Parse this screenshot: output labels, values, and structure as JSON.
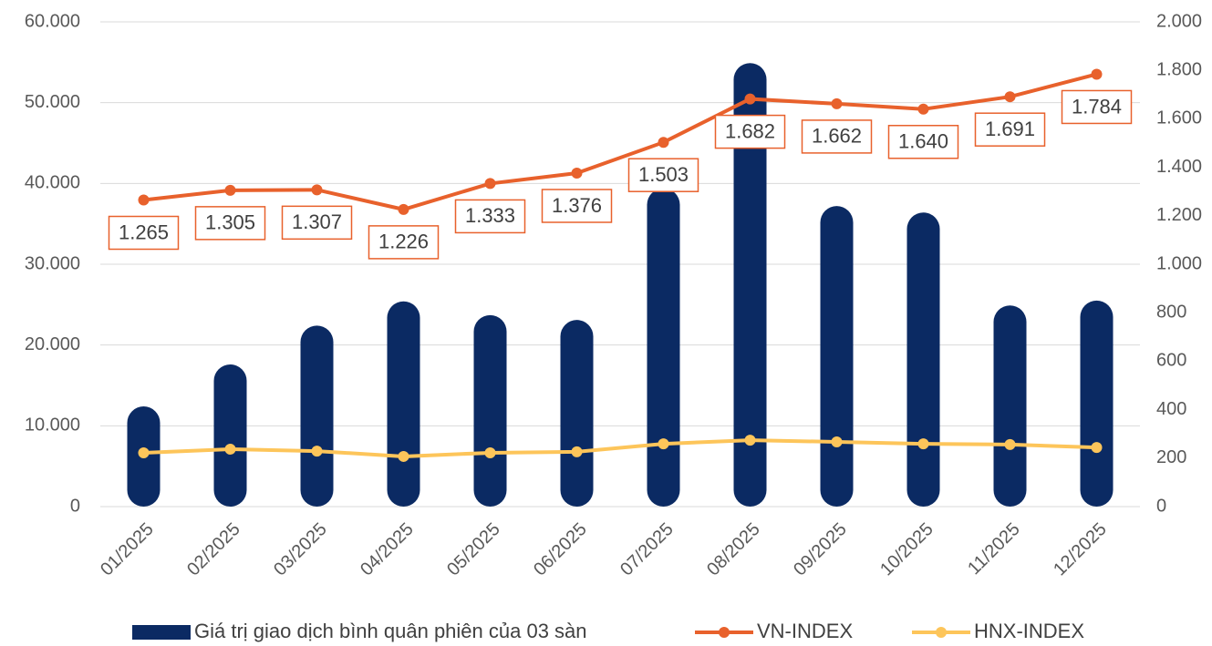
{
  "chart_data": {
    "type": "combo",
    "categories": [
      "01/2025",
      "02/2025",
      "03/2025",
      "04/2025",
      "05/2025",
      "06/2025",
      "07/2025",
      "08/2025",
      "09/2025",
      "10/2025",
      "11/2025",
      "12/2025"
    ],
    "series": [
      {
        "name": "Giá trị giao dịch bình quân phiên của 03 sàn",
        "type": "bar",
        "color": "#0b2a63",
        "values": [
          12400,
          17600,
          22400,
          25400,
          23700,
          23100,
          39400,
          54900,
          37200,
          36400,
          24900,
          25500
        ]
      },
      {
        "name": "VN-INDEX",
        "type": "line",
        "axis": "y2",
        "color": "#e8612c",
        "values": [
          1265,
          1305,
          1307,
          1226,
          1333,
          1376,
          1503,
          1682,
          1662,
          1640,
          1691,
          1784
        ],
        "value_labels": [
          "1.265",
          "1.305",
          "1.307",
          "1.226",
          "1.333",
          "1.376",
          "1.503",
          "1.682",
          "1.662",
          "1.640",
          "1.691",
          "1.784"
        ]
      },
      {
        "name": "HNX-INDEX",
        "type": "line",
        "axis": "y2",
        "color": "#fdc55a",
        "values": [
          222,
          237,
          229,
          207,
          222,
          226,
          259,
          274,
          267,
          259,
          256,
          244
        ]
      }
    ],
    "ylim": [
      0,
      60000
    ],
    "yticks": [
      0,
      {
        "value": 10000,
        "label": "10.000"
      },
      {
        "value": 20000,
        "label": "20.000"
      },
      {
        "value": 30000,
        "label": "30.000"
      },
      {
        "value": 40000,
        "label": "40.000"
      },
      {
        "value": 50000,
        "label": "50.000"
      },
      {
        "value": 60000,
        "label": "60.000"
      }
    ],
    "y2lim": [
      0,
      2000
    ],
    "y2ticks": [
      0,
      200,
      400,
      600,
      800,
      {
        "value": 1000,
        "label": "1.000"
      },
      {
        "value": 1200,
        "label": "1.200"
      },
      {
        "value": 1400,
        "label": "1.400"
      },
      {
        "value": 1600,
        "label": "1.600"
      },
      {
        "value": 1800,
        "label": "1.800"
      },
      {
        "value": 2000,
        "label": "2.000"
      }
    ],
    "grid": true,
    "legend": "bottom"
  }
}
